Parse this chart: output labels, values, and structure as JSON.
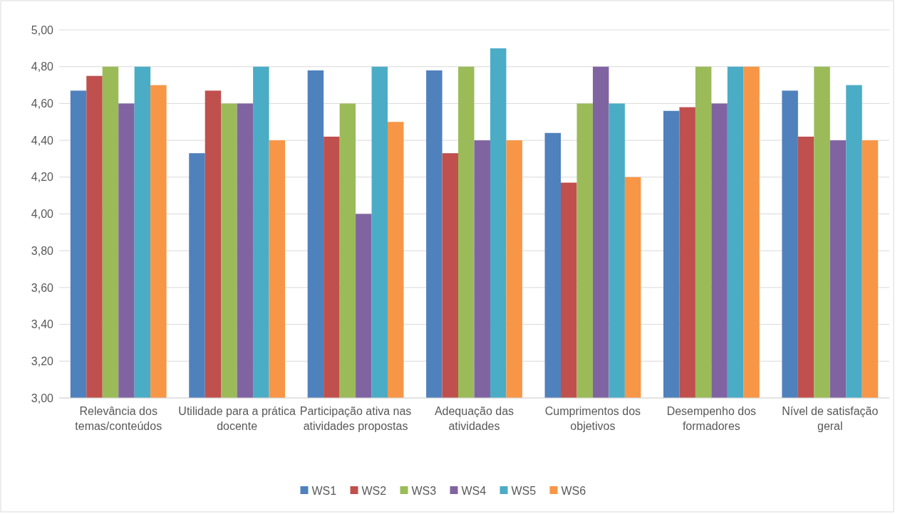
{
  "chart_data": {
    "type": "bar",
    "categories": [
      "Relevância dos temas/conteúdos",
      "Utilidade para a prática docente",
      "Participação ativa nas atividades propostas",
      "Adequação das atividades",
      "Cumprimentos dos objetivos",
      "Desempenho dos formadores",
      "Nível de satisfação geral"
    ],
    "series": [
      {
        "name": "WS1",
        "color": "#4f81bd",
        "values": [
          4.67,
          4.33,
          4.78,
          4.78,
          4.44,
          4.56,
          4.67
        ]
      },
      {
        "name": "WS2",
        "color": "#c0504d",
        "values": [
          4.75,
          4.67,
          4.42,
          4.33,
          4.17,
          4.58,
          4.42
        ]
      },
      {
        "name": "WS3",
        "color": "#9bbb59",
        "values": [
          4.8,
          4.6,
          4.6,
          4.8,
          4.6,
          4.8,
          4.8
        ]
      },
      {
        "name": "WS4",
        "color": "#8064a2",
        "values": [
          4.6,
          4.6,
          4.0,
          4.4,
          4.8,
          4.6,
          4.4
        ]
      },
      {
        "name": "WS5",
        "color": "#4bacc6",
        "values": [
          4.8,
          4.8,
          4.8,
          4.9,
          4.6,
          4.8,
          4.7
        ]
      },
      {
        "name": "WS6",
        "color": "#f79646",
        "values": [
          4.7,
          4.4,
          4.5,
          4.4,
          4.2,
          4.8,
          4.4
        ]
      }
    ],
    "ylim": [
      3,
      5
    ],
    "yticks": [
      {
        "value": 3,
        "label": "3,00"
      },
      {
        "value": 3.2,
        "label": "3,20"
      },
      {
        "value": 3.4,
        "label": "3,40"
      },
      {
        "value": 3.6,
        "label": "3,60"
      },
      {
        "value": 3.8,
        "label": "3,80"
      },
      {
        "value": 4,
        "label": "4,00"
      },
      {
        "value": 4.2,
        "label": "4,20"
      },
      {
        "value": 4.4,
        "label": "4,40"
      },
      {
        "value": 4.6,
        "label": "4,60"
      },
      {
        "value": 4.8,
        "label": "4,80"
      },
      {
        "value": 5,
        "label": "5,00"
      }
    ],
    "grid": "y",
    "legend": "bottom"
  }
}
